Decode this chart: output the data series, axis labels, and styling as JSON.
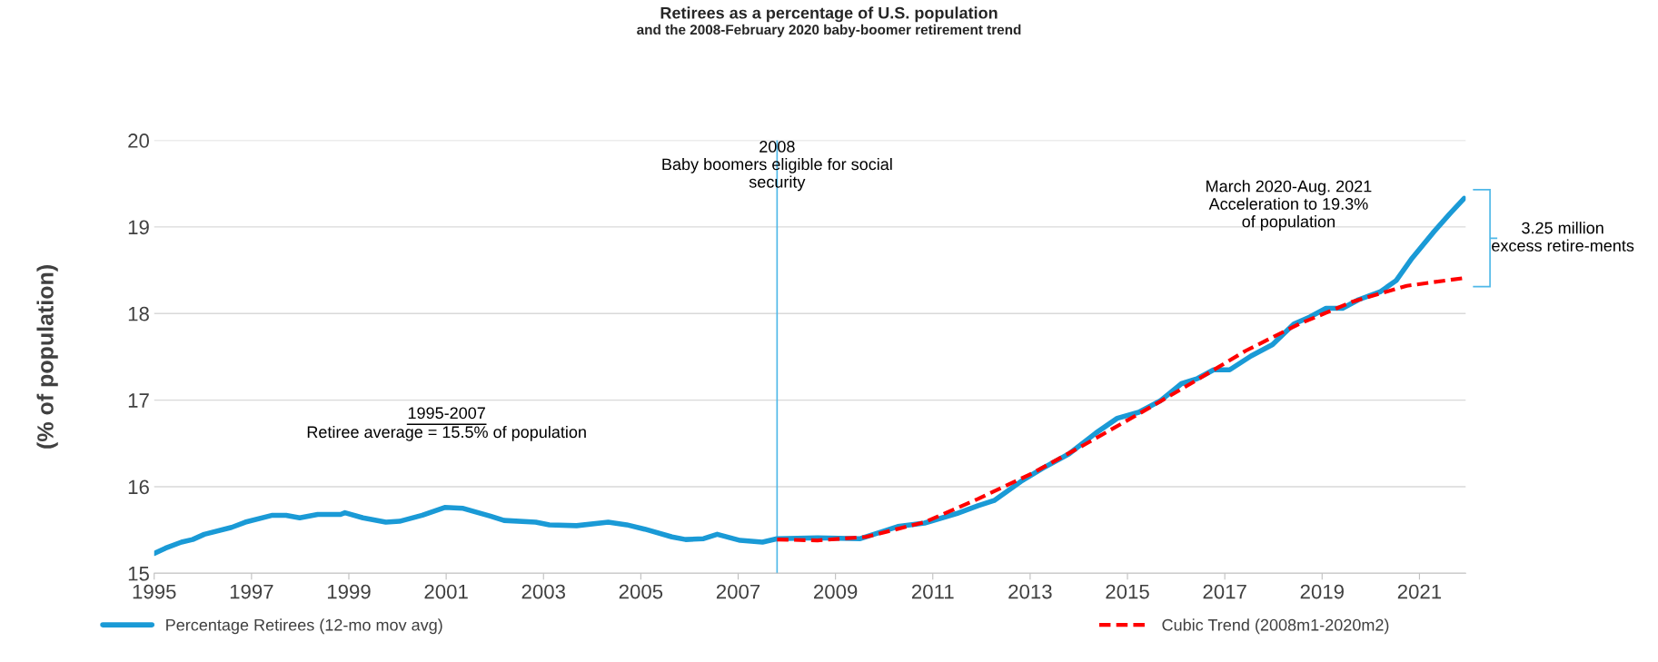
{
  "chart_data": {
    "type": "line",
    "title": "Retirees as a percentage of U.S. population",
    "subtitle": "and the 2008-February 2020 baby-boomer retirement trend",
    "ylabel": "(% of population)",
    "xlim": [
      1995,
      2021.95
    ],
    "xticks": [
      1995,
      1997,
      1999,
      2001,
      2003,
      2005,
      2007,
      2009,
      2011,
      2013,
      2015,
      2017,
      2019,
      2021
    ],
    "ylim": [
      15,
      20
    ],
    "yticks": [
      15,
      16,
      17,
      18,
      19,
      20
    ],
    "grid": "y",
    "legend": "bottom",
    "marker": "none",
    "series": [
      {
        "name": "Percentage Retirees (12-mo mov avg)",
        "color": "#1a9ad6",
        "line_style": "solid",
        "x": [
          1995.0,
          1995.23,
          1995.56,
          1995.79,
          1996.03,
          1996.59,
          1996.87,
          1997.43,
          1997.71,
          1997.99,
          1998.36,
          1998.83,
          1998.92,
          1999.29,
          1999.76,
          2000.04,
          2000.51,
          2000.97,
          2001.35,
          2001.53,
          2001.91,
          2002.19,
          2002.84,
          2003.12,
          2003.68,
          2004.33,
          2004.71,
          2005.08,
          2005.64,
          2005.92,
          2006.29,
          2006.57,
          2007.04,
          2007.5,
          2007.8,
          2008.63,
          2009.51,
          2009.95,
          2010.28,
          2010.83,
          2011.49,
          2011.93,
          2012.26,
          2012.81,
          2013.25,
          2013.8,
          2014.35,
          2014.79,
          2015.23,
          2015.67,
          2016.11,
          2016.44,
          2016.77,
          2017.1,
          2017.54,
          2017.98,
          2018.42,
          2018.75,
          2019.08,
          2019.42,
          2019.75,
          2020.19,
          2020.52,
          2020.85,
          2021.29,
          2021.62,
          2021.92
        ],
        "values": [
          15.23,
          15.29,
          15.36,
          15.39,
          15.45,
          15.53,
          15.59,
          15.67,
          15.67,
          15.64,
          15.68,
          15.68,
          15.7,
          15.64,
          15.59,
          15.6,
          15.67,
          15.76,
          15.75,
          15.72,
          15.66,
          15.61,
          15.59,
          15.56,
          15.55,
          15.59,
          15.56,
          15.51,
          15.42,
          15.39,
          15.4,
          15.45,
          15.38,
          15.36,
          15.4,
          15.41,
          15.4,
          15.48,
          15.54,
          15.58,
          15.69,
          15.78,
          15.84,
          16.06,
          16.21,
          16.38,
          16.62,
          16.79,
          16.86,
          16.99,
          17.19,
          17.25,
          17.35,
          17.35,
          17.51,
          17.64,
          17.88,
          17.96,
          18.06,
          18.06,
          18.16,
          18.25,
          18.38,
          18.64,
          18.94,
          19.15,
          19.33
        ]
      },
      {
        "name": "Cubic Trend (2008m1-2020m2)",
        "color": "#ff0000",
        "line_style": "dashed",
        "x": [
          2007.8,
          2008.63,
          2009.62,
          2010.83,
          2011.93,
          2013.03,
          2014.13,
          2015.23,
          2016.33,
          2017.43,
          2018.53,
          2019.64,
          2020.74,
          2021.92
        ],
        "values": [
          15.39,
          15.38,
          15.42,
          15.59,
          15.86,
          16.15,
          16.49,
          16.84,
          17.2,
          17.57,
          17.88,
          18.14,
          18.32,
          18.41
        ]
      }
    ],
    "ref_lines": [
      {
        "axis": "x",
        "value": 2007.8,
        "label": "2008\nBaby boomers eligible for social\nsecurity",
        "color": "#4fb8e8",
        "line_style": "solid"
      }
    ],
    "annotations": [
      "1995-2007",
      "Retiree average = 15.5% of population",
      "March 2020-Aug. 2021\nAcceleration to 19.3%\nof population",
      "3.25 million\nexcess retire-ments"
    ]
  }
}
